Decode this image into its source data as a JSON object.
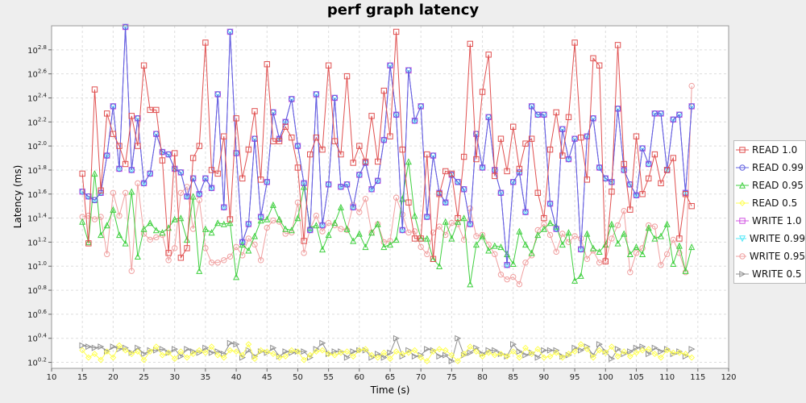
{
  "chart_data": {
    "type": "line",
    "title": "perf graph latency",
    "xlabel": "Time (s)",
    "ylabel": "Latency (ms)",
    "xlim": [
      10,
      120
    ],
    "ylim_log10": [
      0.15,
      3.0
    ],
    "y_scale": "log10",
    "x_ticks": [
      10,
      15,
      20,
      25,
      30,
      35,
      40,
      45,
      50,
      55,
      60,
      65,
      70,
      75,
      80,
      85,
      90,
      95,
      100,
      105,
      110,
      115,
      120
    ],
    "y_ticks": [
      {
        "exp": 0.2,
        "label": "10^0.2"
      },
      {
        "exp": 0.4,
        "label": "10^0.4"
      },
      {
        "exp": 0.6,
        "label": "10^0.6"
      },
      {
        "exp": 0.8,
        "label": "10^0.8"
      },
      {
        "exp": 1.0,
        "label": "10^1.0"
      },
      {
        "exp": 1.2,
        "label": "10^1.2"
      },
      {
        "exp": 1.4,
        "label": "10^1.4"
      },
      {
        "exp": 1.6,
        "label": "10^1.6"
      },
      {
        "exp": 1.8,
        "label": "10^1.8"
      },
      {
        "exp": 2.0,
        "label": "10^2.0"
      },
      {
        "exp": 2.2,
        "label": "10^2.2"
      },
      {
        "exp": 2.4,
        "label": "10^2.4"
      },
      {
        "exp": 2.6,
        "label": "10^2.6"
      },
      {
        "exp": 2.8,
        "label": "10^2.8"
      }
    ],
    "grid": true,
    "legend_position": "right",
    "x": [
      15,
      16,
      17,
      18,
      19,
      20,
      21,
      22,
      23,
      24,
      25,
      26,
      27,
      28,
      29,
      30,
      31,
      32,
      33,
      34,
      35,
      36,
      37,
      38,
      39,
      40,
      41,
      42,
      43,
      44,
      45,
      46,
      47,
      48,
      49,
      50,
      51,
      52,
      53,
      54,
      55,
      56,
      57,
      58,
      59,
      60,
      61,
      62,
      63,
      64,
      65,
      66,
      67,
      68,
      69,
      70,
      71,
      72,
      73,
      74,
      75,
      76,
      77,
      78,
      79,
      80,
      81,
      82,
      83,
      84,
      85,
      86,
      87,
      88,
      89,
      90,
      91,
      92,
      93,
      94,
      95,
      96,
      97,
      98,
      99,
      100,
      101,
      102,
      103,
      104,
      105,
      106,
      107,
      108,
      109,
      110,
      111,
      112,
      113,
      114
    ],
    "series": [
      {
        "name": "READ 1.0",
        "color": "#e05050",
        "marker": "square",
        "values": [
          1.77,
          1.19,
          2.47,
          1.63,
          2.27,
          2.1,
          2.0,
          1.85,
          2.25,
          2.0,
          2.67,
          2.3,
          2.3,
          1.88,
          1.11,
          1.94,
          1.07,
          1.15,
          1.9,
          2.0,
          2.86,
          1.8,
          1.77,
          2.08,
          1.39,
          2.23,
          1.73,
          1.97,
          2.29,
          1.72,
          2.68,
          2.04,
          2.04,
          2.16,
          2.07,
          1.82,
          1.21,
          1.93,
          2.07,
          1.97,
          2.67,
          2.04,
          1.93,
          2.58,
          1.86,
          2.0,
          1.87,
          2.25,
          1.87,
          2.46,
          2.08,
          2.95,
          1.97,
          1.53,
          1.23,
          1.23,
          1.93,
          1.06,
          1.6,
          1.79,
          1.77,
          1.4,
          1.91,
          2.85,
          1.89,
          2.45,
          2.76,
          1.75,
          2.06,
          1.79,
          2.16,
          1.81,
          2.02,
          2.06,
          1.61,
          1.4,
          1.97,
          2.28,
          1.92,
          2.24,
          2.86,
          2.07,
          1.72,
          2.73,
          2.67,
          1.04,
          1.62,
          2.84,
          1.85,
          1.47,
          2.08,
          1.6,
          1.73,
          1.93,
          1.69,
          1.8,
          1.9,
          1.23,
          1.6,
          1.5
        ]
      },
      {
        "name": "READ 0.99",
        "color": "#6060e0",
        "marker": "circle",
        "values": [
          1.62,
          1.58,
          1.55,
          1.61,
          1.92,
          2.33,
          1.81,
          2.99,
          1.8,
          2.23,
          1.69,
          1.77,
          2.1,
          1.95,
          1.93,
          1.81,
          1.78,
          1.58,
          1.73,
          1.6,
          1.73,
          1.65,
          2.43,
          1.49,
          2.95,
          1.94,
          1.2,
          1.35,
          2.06,
          1.41,
          1.7,
          2.28,
          2.06,
          2.2,
          2.39,
          2.0,
          1.69,
          1.3,
          2.43,
          1.34,
          1.68,
          2.4,
          1.66,
          1.68,
          1.49,
          1.76,
          1.86,
          1.64,
          1.71,
          2.05,
          2.67,
          2.26,
          1.3,
          2.63,
          2.21,
          2.33,
          1.41,
          1.92,
          1.61,
          1.53,
          1.76,
          1.7,
          1.64,
          1.35,
          2.1,
          1.82,
          2.24,
          1.8,
          1.61,
          1.01,
          1.7,
          1.78,
          1.45,
          2.33,
          2.26,
          2.26,
          1.52,
          1.31,
          2.14,
          1.89,
          2.06,
          1.14,
          2.08,
          2.23,
          1.82,
          1.73,
          1.7,
          2.31,
          1.8,
          1.68,
          1.59,
          1.98,
          1.85,
          2.27,
          2.27,
          1.8,
          2.22,
          2.26,
          1.61,
          2.33
        ]
      },
      {
        "name": "READ 0.95",
        "color": "#40d040",
        "marker": "triangle",
        "values": [
          1.37,
          1.2,
          1.77,
          1.26,
          1.34,
          1.47,
          1.26,
          1.19,
          1.62,
          1.08,
          1.31,
          1.36,
          1.3,
          1.28,
          1.32,
          1.39,
          1.4,
          1.22,
          1.58,
          0.96,
          1.31,
          1.28,
          1.36,
          1.35,
          1.36,
          0.91,
          1.18,
          1.13,
          1.25,
          1.38,
          1.39,
          1.51,
          1.39,
          1.31,
          1.3,
          1.4,
          1.66,
          1.32,
          1.34,
          1.14,
          1.26,
          1.36,
          1.49,
          1.31,
          1.21,
          1.27,
          1.16,
          1.28,
          1.35,
          1.16,
          1.18,
          1.22,
          1.56,
          1.87,
          1.42,
          1.23,
          1.23,
          1.06,
          1.0,
          1.37,
          1.23,
          1.37,
          1.4,
          0.85,
          1.18,
          1.25,
          1.13,
          1.17,
          1.16,
          1.1,
          1.02,
          1.29,
          1.18,
          1.11,
          1.26,
          1.31,
          1.36,
          1.33,
          1.18,
          1.28,
          0.88,
          0.92,
          1.27,
          1.15,
          1.12,
          1.18,
          1.35,
          1.19,
          1.27,
          1.1,
          1.16,
          1.1,
          1.32,
          1.23,
          1.25,
          1.35,
          1.02,
          1.17,
          0.96,
          1.16
        ]
      },
      {
        "name": "READ 0.5",
        "color": "#ffff50",
        "marker": "diamond",
        "values": [
          0.3,
          0.24,
          0.27,
          0.22,
          0.29,
          0.24,
          0.34,
          0.3,
          0.27,
          0.29,
          0.22,
          0.29,
          0.33,
          0.26,
          0.28,
          0.23,
          0.29,
          0.24,
          0.27,
          0.3,
          0.28,
          0.33,
          0.26,
          0.24,
          0.3,
          0.29,
          0.26,
          0.35,
          0.23,
          0.3,
          0.29,
          0.27,
          0.24,
          0.25,
          0.3,
          0.29,
          0.22,
          0.26,
          0.29,
          0.3,
          0.27,
          0.26,
          0.28,
          0.29,
          0.25,
          0.3,
          0.31,
          0.26,
          0.24,
          0.28,
          0.23,
          0.29,
          0.27,
          0.28,
          0.3,
          0.24,
          0.21,
          0.29,
          0.31,
          0.3,
          0.26,
          0.21,
          0.27,
          0.33,
          0.29,
          0.25,
          0.28,
          0.26,
          0.27,
          0.25,
          0.29,
          0.24,
          0.32,
          0.27,
          0.31,
          0.24,
          0.25,
          0.28,
          0.24,
          0.27,
          0.29,
          0.35,
          0.31,
          0.24,
          0.3,
          0.28,
          0.33,
          0.25,
          0.29,
          0.25,
          0.28,
          0.3,
          0.31,
          0.27,
          0.24,
          0.3,
          0.28,
          0.28,
          0.27,
          0.24
        ]
      },
      {
        "name": "WRITE 1.0",
        "color": "#d050e0",
        "marker": "square",
        "values": [
          1.62,
          1.58,
          1.55,
          1.61,
          1.92,
          2.33,
          1.81,
          2.99,
          1.8,
          2.23,
          1.69,
          1.77,
          2.1,
          1.95,
          1.93,
          1.81,
          1.78,
          1.58,
          1.73,
          1.6,
          1.73,
          1.65,
          2.43,
          1.49,
          2.95,
          1.94,
          1.2,
          1.35,
          2.06,
          1.41,
          1.7,
          2.28,
          2.06,
          2.2,
          2.39,
          2.0,
          1.69,
          1.3,
          2.43,
          1.34,
          1.68,
          2.4,
          1.66,
          1.68,
          1.49,
          1.76,
          1.86,
          1.64,
          1.71,
          2.05,
          2.67,
          2.26,
          1.3,
          2.63,
          2.21,
          2.33,
          1.41,
          1.92,
          1.61,
          1.53,
          1.76,
          1.7,
          1.64,
          1.35,
          2.1,
          1.82,
          2.24,
          1.8,
          1.61,
          1.01,
          1.7,
          1.78,
          1.45,
          2.33,
          2.26,
          2.26,
          1.52,
          1.31,
          2.14,
          1.89,
          2.06,
          1.14,
          2.08,
          2.23,
          1.82,
          1.73,
          1.7,
          2.31,
          1.8,
          1.68,
          1.59,
          1.98,
          1.85,
          2.27,
          2.27,
          1.8,
          2.22,
          2.26,
          1.61,
          2.33
        ]
      },
      {
        "name": "WRITE 0.99",
        "color": "#50e8f8",
        "marker": "triangle-down",
        "values": [
          1.62,
          1.58,
          1.55,
          1.61,
          1.92,
          2.33,
          1.81,
          2.99,
          1.8,
          2.23,
          1.69,
          1.77,
          2.1,
          1.95,
          1.93,
          1.81,
          1.78,
          1.58,
          1.73,
          1.6,
          1.73,
          1.65,
          2.43,
          1.49,
          2.95,
          1.94,
          1.2,
          1.35,
          2.06,
          1.41,
          1.7,
          2.28,
          2.06,
          2.2,
          2.39,
          2.0,
          1.69,
          1.3,
          2.43,
          1.34,
          1.68,
          2.4,
          1.66,
          1.68,
          1.49,
          1.76,
          1.86,
          1.64,
          1.71,
          2.05,
          2.67,
          2.26,
          1.3,
          2.63,
          2.21,
          2.33,
          1.41,
          1.92,
          1.61,
          1.53,
          1.76,
          1.7,
          1.64,
          1.35,
          2.1,
          1.82,
          2.24,
          1.8,
          1.61,
          1.01,
          1.7,
          1.78,
          1.45,
          2.33,
          2.26,
          2.26,
          1.52,
          1.31,
          2.14,
          1.89,
          2.06,
          1.14,
          2.08,
          2.23,
          1.82,
          1.73,
          1.7,
          2.31,
          1.8,
          1.68,
          1.59,
          1.98,
          1.85,
          2.27,
          2.27,
          1.8,
          2.22,
          2.26,
          1.61,
          2.33
        ]
      },
      {
        "name": "WRITE 0.95",
        "color": "#f0a0a0",
        "marker": "circle",
        "values": [
          1.41,
          1.42,
          1.39,
          1.41,
          1.1,
          1.61,
          1.42,
          1.61,
          0.96,
          1.69,
          1.27,
          1.22,
          1.24,
          1.26,
          1.05,
          1.15,
          1.61,
          1.66,
          1.31,
          1.55,
          1.15,
          1.03,
          1.03,
          1.05,
          1.08,
          1.16,
          1.09,
          1.23,
          1.18,
          1.05,
          1.32,
          1.38,
          1.37,
          1.27,
          1.28,
          1.53,
          1.11,
          1.31,
          1.42,
          1.29,
          1.36,
          1.34,
          1.31,
          1.3,
          1.51,
          1.45,
          1.56,
          1.28,
          1.35,
          1.2,
          1.21,
          1.57,
          1.43,
          1.28,
          1.29,
          1.16,
          1.1,
          1.28,
          1.33,
          1.26,
          1.36,
          1.35,
          1.22,
          1.48,
          1.25,
          1.26,
          1.18,
          1.1,
          0.93,
          0.89,
          0.91,
          0.85,
          1.03,
          1.09,
          1.3,
          1.35,
          1.26,
          1.12,
          1.27,
          1.2,
          1.25,
          1.23,
          1.06,
          1.13,
          1.03,
          1.05,
          1.23,
          1.34,
          1.46,
          0.95,
          1.11,
          1.15,
          1.34,
          1.33,
          1.01,
          1.1,
          1.22,
          1.11,
          0.95,
          2.5
        ]
      },
      {
        "name": "WRITE 0.5",
        "color": "#909090",
        "marker": "triangle-right",
        "values": [
          0.34,
          0.33,
          0.32,
          0.33,
          0.29,
          0.33,
          0.31,
          0.32,
          0.28,
          0.32,
          0.27,
          0.3,
          0.3,
          0.31,
          0.28,
          0.31,
          0.25,
          0.31,
          0.29,
          0.28,
          0.32,
          0.28,
          0.29,
          0.27,
          0.36,
          0.35,
          0.24,
          0.3,
          0.25,
          0.29,
          0.28,
          0.32,
          0.25,
          0.29,
          0.28,
          0.29,
          0.29,
          0.24,
          0.31,
          0.36,
          0.27,
          0.29,
          0.29,
          0.24,
          0.29,
          0.3,
          0.3,
          0.24,
          0.27,
          0.24,
          0.28,
          0.4,
          0.25,
          0.3,
          0.25,
          0.26,
          0.31,
          0.3,
          0.25,
          0.26,
          0.21,
          0.4,
          0.26,
          0.28,
          0.32,
          0.27,
          0.3,
          0.3,
          0.27,
          0.25,
          0.35,
          0.29,
          0.26,
          0.28,
          0.24,
          0.3,
          0.3,
          0.3,
          0.25,
          0.26,
          0.32,
          0.3,
          0.33,
          0.26,
          0.35,
          0.29,
          0.23,
          0.31,
          0.27,
          0.29,
          0.32,
          0.33,
          0.27,
          0.32,
          0.29,
          0.31,
          0.27,
          0.29,
          0.25,
          0.31
        ]
      }
    ]
  }
}
